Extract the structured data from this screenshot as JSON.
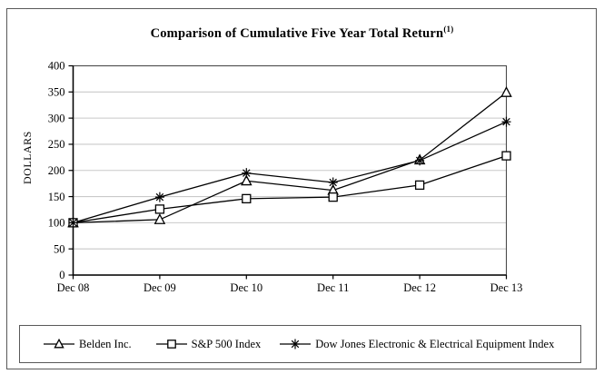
{
  "title": {
    "text": "Comparison of Cumulative Five Year Total Return",
    "superscript": "(1)"
  },
  "chart_data": {
    "type": "line",
    "x": [
      "Dec 08",
      "Dec 09",
      "Dec 10",
      "Dec 11",
      "Dec 12",
      "Dec 13"
    ],
    "series": [
      {
        "name": "Belden Inc.",
        "marker": "triangle",
        "values": [
          100,
          106,
          180,
          162,
          220,
          349
        ]
      },
      {
        "name": "S&P 500 Index",
        "marker": "square",
        "values": [
          100,
          126,
          146,
          149,
          172,
          228
        ]
      },
      {
        "name": "Dow Jones Electronic & Electrical Equipment Index",
        "marker": "asterisk",
        "values": [
          100,
          149,
          195,
          177,
          219,
          293
        ]
      }
    ],
    "xlabel": "",
    "ylabel": "DOLLARS",
    "ylim": [
      0,
      400
    ],
    "y_tick_step": 50,
    "y_ticks": [
      "0",
      "50",
      "100",
      "150",
      "200",
      "250",
      "300",
      "350",
      "400"
    ],
    "grid": true,
    "legend_position": "bottom",
    "line_color": "#000000",
    "grid_color": "#c9c9c9",
    "box_color": "#4a4a4a"
  }
}
